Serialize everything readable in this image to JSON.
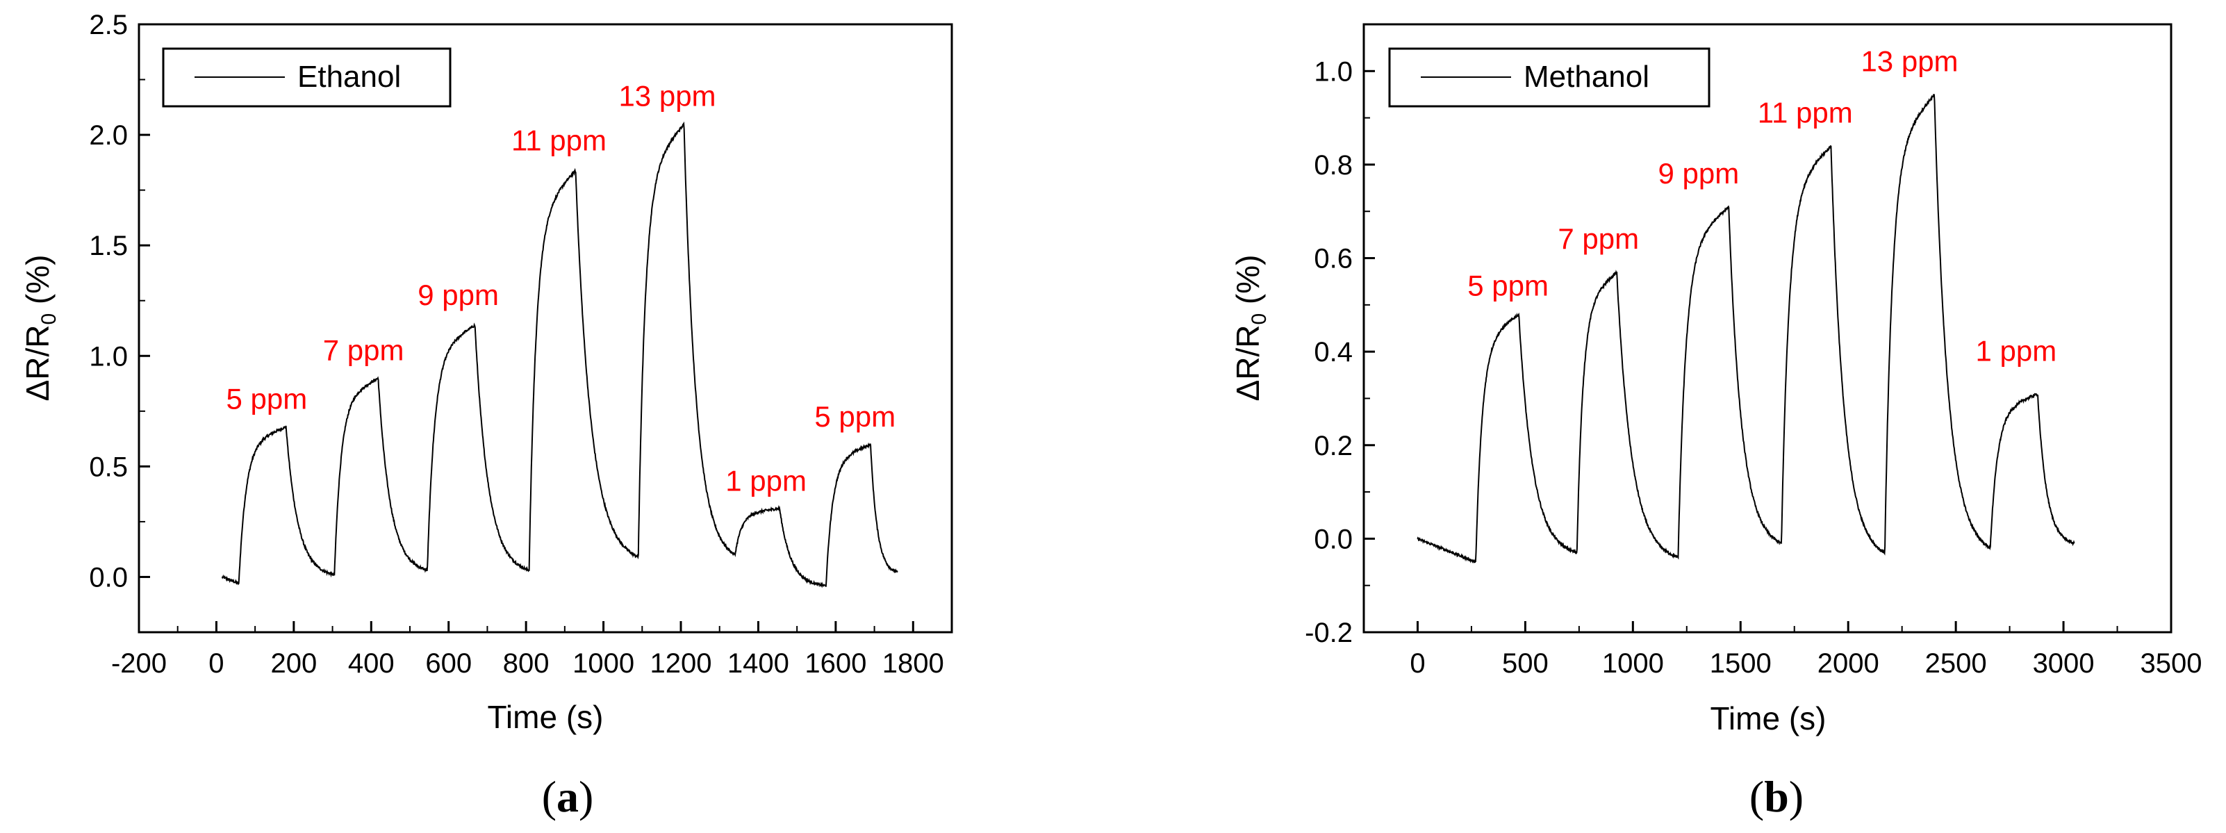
{
  "chart_data": [
    {
      "type": "line",
      "panel_letter": "a",
      "xlabel": "Time (s)",
      "ylabel_main": "ΔR/R",
      "ylabel_sub": "0",
      "ylabel_tail": " (%)",
      "xlim": [
        -200,
        1900
      ],
      "ylim": [
        -0.25,
        2.5
      ],
      "xticks": [
        -200,
        0,
        200,
        400,
        600,
        800,
        1000,
        1200,
        1400,
        1600,
        1800
      ],
      "xtick_labels": [
        "-200",
        "0",
        "200",
        "400",
        "600",
        "800",
        "1000",
        "1200",
        "1400",
        "1600",
        "1800"
      ],
      "yticks": [
        0.0,
        0.5,
        1.0,
        1.5,
        2.0,
        2.5
      ],
      "ytick_labels": [
        "0.0",
        "0.5",
        "1.0",
        "1.5",
        "2.0",
        "2.5"
      ],
      "legend": {
        "label": "Ethanol",
        "position": "top-left"
      },
      "line_color": "#000000",
      "annotation_color": "#ff0000",
      "baseline_start": {
        "t0": 15,
        "t1": 58,
        "v0": 0.0,
        "v1": -0.03
      },
      "pulses": [
        {
          "on": 58,
          "off": 180,
          "peak": 0.68,
          "end": 0.01,
          "label": "5 ppm",
          "label_x": 130,
          "label_y": 0.76
        },
        {
          "on": 305,
          "off": 418,
          "peak": 0.9,
          "end": 0.03,
          "label": "7 ppm",
          "label_x": 380,
          "label_y": 0.98
        },
        {
          "on": 545,
          "off": 668,
          "peak": 1.14,
          "end": 0.03,
          "label": "9 ppm",
          "label_x": 625,
          "label_y": 1.23
        },
        {
          "on": 808,
          "off": 928,
          "peak": 1.84,
          "end": 0.09,
          "label": "11 ppm",
          "label_x": 885,
          "label_y": 1.93
        },
        {
          "on": 1090,
          "off": 1208,
          "peak": 2.05,
          "end": 0.1,
          "label": "13 ppm",
          "label_x": 1165,
          "label_y": 2.13
        },
        {
          "on": 1340,
          "off": 1455,
          "peak": 0.31,
          "end": -0.04,
          "label": "1 ppm",
          "label_x": 1420,
          "label_y": 0.39
        },
        {
          "on": 1575,
          "off": 1690,
          "peak": 0.6,
          "end": 0.02,
          "label": "5 ppm",
          "label_x": 1650,
          "label_y": 0.68
        }
      ],
      "trace_end": 1760
    },
    {
      "type": "line",
      "panel_letter": "b",
      "xlabel": "Time (s)",
      "ylabel_main": "ΔR/R",
      "ylabel_sub": "0",
      "ylabel_tail": " (%)",
      "xlim": [
        -250,
        3500
      ],
      "ylim": [
        -0.2,
        1.1
      ],
      "xticks": [
        0,
        500,
        1000,
        1500,
        2000,
        2500,
        3000,
        3500
      ],
      "xtick_labels": [
        "0",
        "500",
        "1000",
        "1500",
        "2000",
        "2500",
        "3000",
        "3500"
      ],
      "yticks": [
        -0.2,
        0.0,
        0.2,
        0.4,
        0.6,
        0.8,
        1.0
      ],
      "ytick_labels": [
        "-0.2",
        "0.0",
        "0.2",
        "0.4",
        "0.6",
        "0.8",
        "1.0"
      ],
      "legend": {
        "label": "Methanol",
        "position": "top-left"
      },
      "line_color": "#000000",
      "annotation_color": "#ff0000",
      "baseline_start": {
        "t0": 0,
        "t1": 270,
        "v0": 0.0,
        "v1": -0.05
      },
      "pulses": [
        {
          "on": 270,
          "off": 470,
          "peak": 0.48,
          "end": -0.03,
          "label": "5 ppm",
          "label_x": 420,
          "label_y": 0.52
        },
        {
          "on": 740,
          "off": 925,
          "peak": 0.57,
          "end": -0.04,
          "label": "7 ppm",
          "label_x": 840,
          "label_y": 0.62
        },
        {
          "on": 1210,
          "off": 1445,
          "peak": 0.71,
          "end": -0.01,
          "label": "9 ppm",
          "label_x": 1305,
          "label_y": 0.76
        },
        {
          "on": 1690,
          "off": 1920,
          "peak": 0.84,
          "end": -0.03,
          "label": "11 ppm",
          "label_x": 1800,
          "label_y": 0.89
        },
        {
          "on": 2170,
          "off": 2400,
          "peak": 0.95,
          "end": -0.02,
          "label": "13 ppm",
          "label_x": 2285,
          "label_y": 1.0
        },
        {
          "on": 2660,
          "off": 2880,
          "peak": 0.31,
          "end": -0.01,
          "label": "1 ppm",
          "label_x": 2780,
          "label_y": 0.38
        }
      ],
      "trace_end": 3050
    }
  ]
}
